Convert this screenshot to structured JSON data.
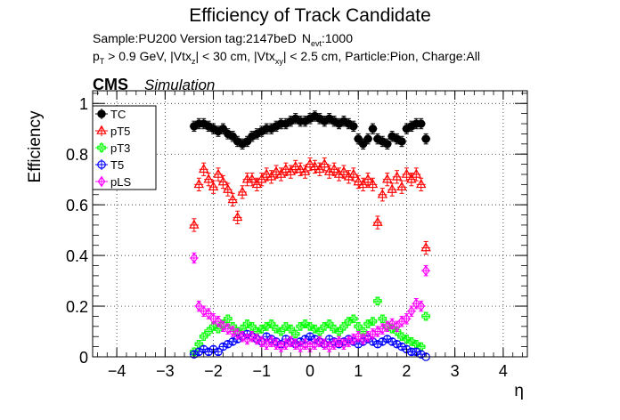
{
  "header": {
    "title": "Efficiency of Track Candidate",
    "sample_line": "Sample:PU200   Version tag:2147beD",
    "nevt_label": "N",
    "nevt_sub": "evt",
    "nevt_value": ":1000",
    "cuts": {
      "pt_p": "p",
      "pt_sub": "T",
      "pt_rest": " > 0.9 GeV, |Vtx",
      "vtxz_sub": "z",
      "mid": "| < 30 cm, |Vtx",
      "vtxxy_sub": "xy",
      "tail": "| < 2.5 cm, Particle:Pion, Charge:All"
    },
    "cms": "CMS",
    "simulation": "Simulation"
  },
  "chart_data": {
    "type": "scatter",
    "xlabel": "η",
    "ylabel": "Efficiency",
    "xlim": [
      -4.5,
      4.5
    ],
    "ylim": [
      0,
      1.05
    ],
    "grid": true,
    "legend_placement": "top-left",
    "x_ticks": [
      -4,
      -3,
      -2,
      -1,
      0,
      1,
      2,
      3,
      4
    ],
    "x_tick_labels": [
      "−4",
      "−3",
      "−2",
      "−1",
      "0",
      "1",
      "2",
      "3",
      "4"
    ],
    "y_ticks": [
      0,
      0.2,
      0.4,
      0.6,
      0.8,
      1
    ],
    "y_tick_labels": [
      "0",
      "0.2",
      "0.4",
      "0.6",
      "0.8",
      "1"
    ],
    "series": [
      {
        "name": "TC",
        "color": "#000000",
        "marker": "filled-circle",
        "x": [
          -2.4,
          -2.3,
          -2.2,
          -2.1,
          -2.0,
          -1.9,
          -1.8,
          -1.7,
          -1.6,
          -1.5,
          -1.4,
          -1.3,
          -1.2,
          -1.1,
          -1.0,
          -0.9,
          -0.8,
          -0.7,
          -0.6,
          -0.5,
          -0.4,
          -0.3,
          -0.2,
          -0.1,
          0.0,
          0.1,
          0.2,
          0.3,
          0.4,
          0.5,
          0.6,
          0.7,
          0.8,
          0.9,
          1.0,
          1.1,
          1.2,
          1.3,
          1.4,
          1.5,
          1.6,
          1.7,
          1.8,
          1.9,
          2.0,
          2.1,
          2.2,
          2.3,
          2.4
        ],
        "y": [
          0.91,
          0.92,
          0.92,
          0.91,
          0.9,
          0.89,
          0.9,
          0.88,
          0.87,
          0.85,
          0.84,
          0.85,
          0.87,
          0.88,
          0.89,
          0.9,
          0.9,
          0.91,
          0.92,
          0.92,
          0.93,
          0.94,
          0.93,
          0.93,
          0.94,
          0.95,
          0.94,
          0.93,
          0.94,
          0.93,
          0.92,
          0.93,
          0.92,
          0.91,
          0.86,
          0.84,
          0.86,
          0.9,
          0.86,
          0.85,
          0.84,
          0.87,
          0.86,
          0.85,
          0.9,
          0.91,
          0.92,
          0.92,
          0.86
        ],
        "err": 0.02
      },
      {
        "name": "pT5",
        "color": "#ff0000",
        "marker": "open-triangle",
        "x": [
          -2.4,
          -2.3,
          -2.2,
          -2.1,
          -2.0,
          -1.9,
          -1.8,
          -1.7,
          -1.6,
          -1.5,
          -1.4,
          -1.3,
          -1.2,
          -1.1,
          -1.0,
          -0.9,
          -0.8,
          -0.7,
          -0.6,
          -0.5,
          -0.4,
          -0.3,
          -0.2,
          -0.1,
          0.0,
          0.1,
          0.2,
          0.3,
          0.4,
          0.5,
          0.6,
          0.7,
          0.8,
          0.9,
          1.0,
          1.1,
          1.2,
          1.3,
          1.4,
          1.5,
          1.6,
          1.7,
          1.8,
          1.9,
          2.0,
          2.1,
          2.2,
          2.3,
          2.4
        ],
        "y": [
          0.52,
          0.68,
          0.74,
          0.7,
          0.67,
          0.72,
          0.69,
          0.66,
          0.62,
          0.55,
          0.65,
          0.7,
          0.7,
          0.68,
          0.7,
          0.72,
          0.71,
          0.73,
          0.72,
          0.74,
          0.73,
          0.75,
          0.74,
          0.73,
          0.76,
          0.75,
          0.74,
          0.76,
          0.73,
          0.74,
          0.72,
          0.73,
          0.71,
          0.72,
          0.69,
          0.68,
          0.7,
          0.68,
          0.53,
          0.64,
          0.7,
          0.66,
          0.71,
          0.67,
          0.72,
          0.7,
          0.72,
          0.68,
          0.43
        ],
        "err": 0.025
      },
      {
        "name": "pT3",
        "color": "#00ff00",
        "marker": "open-cross",
        "x": [
          -2.4,
          -2.3,
          -2.2,
          -2.1,
          -2.0,
          -1.9,
          -1.8,
          -1.7,
          -1.6,
          -1.5,
          -1.4,
          -1.3,
          -1.2,
          -1.1,
          -1.0,
          -0.9,
          -0.8,
          -0.7,
          -0.6,
          -0.5,
          -0.4,
          -0.3,
          -0.2,
          -0.1,
          0.0,
          0.1,
          0.2,
          0.3,
          0.4,
          0.5,
          0.6,
          0.7,
          0.8,
          0.9,
          1.0,
          1.1,
          1.2,
          1.3,
          1.4,
          1.5,
          1.6,
          1.7,
          1.8,
          1.9,
          2.0,
          2.1,
          2.2,
          2.3,
          2.4
        ],
        "y": [
          0.02,
          0.05,
          0.08,
          0.1,
          0.12,
          0.11,
          0.13,
          0.15,
          0.12,
          0.1,
          0.11,
          0.13,
          0.12,
          0.1,
          0.11,
          0.12,
          0.13,
          0.11,
          0.1,
          0.12,
          0.11,
          0.09,
          0.12,
          0.13,
          0.12,
          0.11,
          0.1,
          0.12,
          0.13,
          0.11,
          0.1,
          0.12,
          0.14,
          0.15,
          0.12,
          0.1,
          0.13,
          0.14,
          0.22,
          0.15,
          0.12,
          0.11,
          0.1,
          0.08,
          0.07,
          0.06,
          0.05,
          0.04,
          0.16
        ],
        "err": 0.015
      },
      {
        "name": "T5",
        "color": "#0000ff",
        "marker": "open-circle",
        "x": [
          -2.4,
          -2.3,
          -2.2,
          -2.1,
          -2.0,
          -1.9,
          -1.8,
          -1.7,
          -1.6,
          -1.5,
          -1.4,
          -1.3,
          -1.2,
          -1.1,
          -1.0,
          -0.9,
          -0.8,
          -0.7,
          -0.6,
          -0.5,
          -0.4,
          -0.3,
          -0.2,
          -0.1,
          0.0,
          0.1,
          0.2,
          0.3,
          0.4,
          0.5,
          0.6,
          0.7,
          0.8,
          0.9,
          1.0,
          1.1,
          1.2,
          1.3,
          1.4,
          1.5,
          1.6,
          1.7,
          1.8,
          1.9,
          2.0,
          2.1,
          2.2,
          2.3,
          2.4
        ],
        "y": [
          0.01,
          0.02,
          0.03,
          0.02,
          0.03,
          0.02,
          0.04,
          0.05,
          0.06,
          0.07,
          0.08,
          0.09,
          0.08,
          0.07,
          0.06,
          0.08,
          0.07,
          0.06,
          0.05,
          0.07,
          0.06,
          0.05,
          0.06,
          0.07,
          0.08,
          0.07,
          0.06,
          0.05,
          0.07,
          0.06,
          0.05,
          0.06,
          0.07,
          0.06,
          0.05,
          0.06,
          0.07,
          0.06,
          0.05,
          0.06,
          0.07,
          0.06,
          0.05,
          0.04,
          0.03,
          0.02,
          0.02,
          0.01,
          0.0
        ],
        "err": 0.012
      },
      {
        "name": "pLS",
        "color": "#ff00ff",
        "marker": "open-diamond",
        "x": [
          -2.4,
          -2.3,
          -2.2,
          -2.1,
          -2.0,
          -1.9,
          -1.8,
          -1.7,
          -1.6,
          -1.5,
          -1.4,
          -1.3,
          -1.2,
          -1.1,
          -1.0,
          -0.9,
          -0.8,
          -0.7,
          -0.6,
          -0.5,
          -0.4,
          -0.3,
          -0.2,
          -0.1,
          0.0,
          0.1,
          0.2,
          0.3,
          0.4,
          0.5,
          0.6,
          0.7,
          0.8,
          0.9,
          1.0,
          1.1,
          1.2,
          1.3,
          1.4,
          1.5,
          1.6,
          1.7,
          1.8,
          1.9,
          2.0,
          2.1,
          2.2,
          2.3,
          2.4
        ],
        "y": [
          0.39,
          0.2,
          0.18,
          0.17,
          0.15,
          0.14,
          0.12,
          0.11,
          0.1,
          0.09,
          0.08,
          0.07,
          0.08,
          0.07,
          0.06,
          0.05,
          0.06,
          0.05,
          0.04,
          0.05,
          0.06,
          0.05,
          0.04,
          0.05,
          0.04,
          0.05,
          0.06,
          0.05,
          0.04,
          0.05,
          0.06,
          0.05,
          0.06,
          0.07,
          0.08,
          0.07,
          0.08,
          0.09,
          0.1,
          0.11,
          0.12,
          0.13,
          0.12,
          0.14,
          0.15,
          0.18,
          0.21,
          0.2,
          0.34
        ],
        "err": 0.02
      }
    ]
  }
}
